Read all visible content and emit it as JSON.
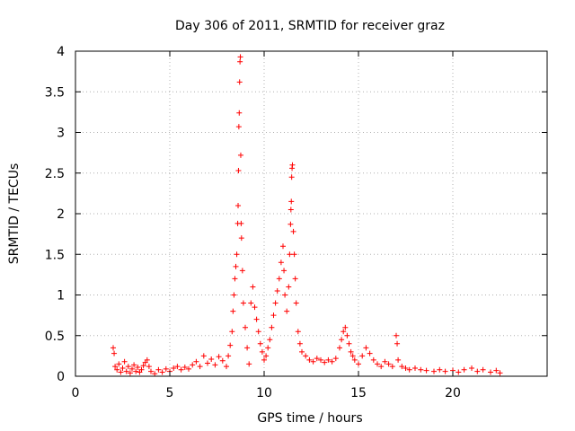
{
  "chart_data": {
    "type": "scatter",
    "title": "Day 306 of 2011, SRMTID for receiver graz",
    "xlabel": "GPS time / hours",
    "ylabel": "SRMTID / TECUs",
    "xlim": [
      0,
      25
    ],
    "ylim": [
      0,
      4
    ],
    "xticks": [
      0,
      5,
      10,
      15,
      20
    ],
    "yticks": [
      0,
      0.5,
      1,
      1.5,
      2,
      2.5,
      3,
      3.5,
      4
    ],
    "ytick_labels": [
      "0",
      "0.5",
      "1",
      "1.5",
      "2",
      "2.5",
      "3",
      "3.5",
      "4"
    ],
    "grid": true,
    "marker": "plus",
    "series": [
      {
        "name": "SRMTID",
        "color": "#ff0000",
        "points": [
          [
            2.0,
            0.35
          ],
          [
            2.05,
            0.28
          ],
          [
            2.1,
            0.12
          ],
          [
            2.2,
            0.08
          ],
          [
            2.3,
            0.15
          ],
          [
            2.4,
            0.05
          ],
          [
            2.5,
            0.1
          ],
          [
            2.6,
            0.18
          ],
          [
            2.7,
            0.06
          ],
          [
            2.8,
            0.12
          ],
          [
            2.9,
            0.04
          ],
          [
            3.0,
            0.09
          ],
          [
            3.1,
            0.14
          ],
          [
            3.2,
            0.06
          ],
          [
            3.3,
            0.11
          ],
          [
            3.4,
            0.05
          ],
          [
            3.5,
            0.08
          ],
          [
            3.6,
            0.13
          ],
          [
            3.7,
            0.17
          ],
          [
            3.8,
            0.2
          ],
          [
            3.9,
            0.12
          ],
          [
            4.0,
            0.06
          ],
          [
            4.2,
            0.03
          ],
          [
            4.4,
            0.08
          ],
          [
            4.6,
            0.05
          ],
          [
            4.8,
            0.09
          ],
          [
            5.0,
            0.06
          ],
          [
            5.2,
            0.1
          ],
          [
            5.4,
            0.12
          ],
          [
            5.6,
            0.08
          ],
          [
            5.8,
            0.11
          ],
          [
            6.0,
            0.09
          ],
          [
            6.2,
            0.14
          ],
          [
            6.4,
            0.18
          ],
          [
            6.6,
            0.12
          ],
          [
            6.8,
            0.25
          ],
          [
            7.0,
            0.16
          ],
          [
            7.2,
            0.21
          ],
          [
            7.4,
            0.14
          ],
          [
            7.6,
            0.24
          ],
          [
            7.8,
            0.19
          ],
          [
            8.0,
            0.12
          ],
          [
            8.1,
            0.25
          ],
          [
            8.2,
            0.38
          ],
          [
            8.3,
            0.55
          ],
          [
            8.35,
            0.8
          ],
          [
            8.4,
            1.0
          ],
          [
            8.45,
            1.2
          ],
          [
            8.5,
            1.35
          ],
          [
            8.55,
            1.5
          ],
          [
            8.6,
            1.88
          ],
          [
            8.62,
            2.1
          ],
          [
            8.64,
            2.53
          ],
          [
            8.66,
            3.07
          ],
          [
            8.68,
            3.24
          ],
          [
            8.7,
            3.62
          ],
          [
            8.72,
            3.87
          ],
          [
            8.74,
            3.93
          ],
          [
            8.76,
            2.72
          ],
          [
            8.78,
            1.88
          ],
          [
            8.8,
            1.7
          ],
          [
            8.85,
            1.3
          ],
          [
            8.9,
            0.9
          ],
          [
            9.0,
            0.6
          ],
          [
            9.1,
            0.35
          ],
          [
            9.2,
            0.15
          ],
          [
            9.3,
            0.9
          ],
          [
            9.4,
            1.1
          ],
          [
            9.5,
            0.85
          ],
          [
            9.6,
            0.7
          ],
          [
            9.7,
            0.55
          ],
          [
            9.8,
            0.4
          ],
          [
            9.9,
            0.3
          ],
          [
            10.0,
            0.2
          ],
          [
            10.1,
            0.25
          ],
          [
            10.2,
            0.35
          ],
          [
            10.3,
            0.45
          ],
          [
            10.4,
            0.6
          ],
          [
            10.5,
            0.75
          ],
          [
            10.6,
            0.9
          ],
          [
            10.7,
            1.05
          ],
          [
            10.8,
            1.2
          ],
          [
            10.9,
            1.4
          ],
          [
            11.0,
            1.6
          ],
          [
            11.05,
            1.3
          ],
          [
            11.1,
            1.0
          ],
          [
            11.2,
            0.8
          ],
          [
            11.3,
            1.1
          ],
          [
            11.35,
            1.5
          ],
          [
            11.4,
            1.87
          ],
          [
            11.42,
            2.05
          ],
          [
            11.44,
            2.15
          ],
          [
            11.46,
            2.45
          ],
          [
            11.48,
            2.56
          ],
          [
            11.5,
            2.6
          ],
          [
            11.55,
            1.78
          ],
          [
            11.6,
            1.5
          ],
          [
            11.65,
            1.2
          ],
          [
            11.7,
            0.9
          ],
          [
            11.8,
            0.55
          ],
          [
            11.9,
            0.4
          ],
          [
            12.0,
            0.3
          ],
          [
            12.2,
            0.25
          ],
          [
            12.4,
            0.2
          ],
          [
            12.6,
            0.18
          ],
          [
            12.8,
            0.22
          ],
          [
            13.0,
            0.2
          ],
          [
            13.2,
            0.17
          ],
          [
            13.4,
            0.2
          ],
          [
            13.6,
            0.18
          ],
          [
            13.8,
            0.22
          ],
          [
            14.0,
            0.35
          ],
          [
            14.1,
            0.45
          ],
          [
            14.2,
            0.55
          ],
          [
            14.3,
            0.6
          ],
          [
            14.4,
            0.5
          ],
          [
            14.5,
            0.4
          ],
          [
            14.6,
            0.3
          ],
          [
            14.7,
            0.25
          ],
          [
            14.8,
            0.2
          ],
          [
            15.0,
            0.15
          ],
          [
            15.2,
            0.25
          ],
          [
            15.4,
            0.35
          ],
          [
            15.6,
            0.28
          ],
          [
            15.8,
            0.2
          ],
          [
            16.0,
            0.15
          ],
          [
            16.2,
            0.12
          ],
          [
            16.4,
            0.18
          ],
          [
            16.6,
            0.15
          ],
          [
            16.8,
            0.12
          ],
          [
            17.0,
            0.5
          ],
          [
            17.05,
            0.4
          ],
          [
            17.1,
            0.2
          ],
          [
            17.3,
            0.12
          ],
          [
            17.5,
            0.1
          ],
          [
            17.7,
            0.08
          ],
          [
            18.0,
            0.1
          ],
          [
            18.3,
            0.08
          ],
          [
            18.6,
            0.07
          ],
          [
            19.0,
            0.06
          ],
          [
            19.3,
            0.08
          ],
          [
            19.6,
            0.06
          ],
          [
            20.0,
            0.07
          ],
          [
            20.3,
            0.05
          ],
          [
            20.6,
            0.08
          ],
          [
            21.0,
            0.1
          ],
          [
            21.3,
            0.06
          ],
          [
            21.6,
            0.08
          ],
          [
            22.0,
            0.05
          ],
          [
            22.3,
            0.07
          ],
          [
            22.5,
            0.04
          ]
        ]
      }
    ]
  }
}
